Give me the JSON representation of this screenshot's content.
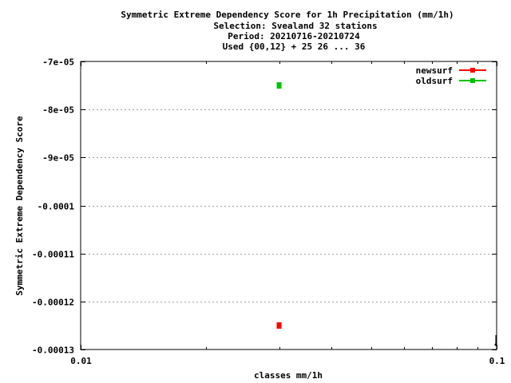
{
  "chart_data": {
    "type": "scatter",
    "title_lines": [
      "Symmetric Extreme Dependency Score  for 1h Precipitation (mm/1h)",
      "Selection: Svealand     32 stations",
      "Period: 20210716-20210724",
      "Used {00,12} + 25 26 ... 36"
    ],
    "xlabel": "classes mm/1h",
    "ylabel": "Symmetric Extreme Dependency Score",
    "xscale": "log",
    "xlim": [
      0.01,
      0.1
    ],
    "ylim": [
      -0.00013,
      -7e-05
    ],
    "x_ticks": [
      {
        "value": 0.01,
        "label": "0.01"
      },
      {
        "value": 0.1,
        "label": "0.1"
      }
    ],
    "y_ticks": [
      {
        "value": -7e-05,
        "label": "-7e-05"
      },
      {
        "value": -8e-05,
        "label": "-8e-05"
      },
      {
        "value": -9e-05,
        "label": "-9e-05"
      },
      {
        "value": -0.0001,
        "label": "-0.0001"
      },
      {
        "value": -0.00011,
        "label": "-0.00011"
      },
      {
        "value": -0.00012,
        "label": "-0.00012"
      },
      {
        "value": -0.00013,
        "label": "-0.00013"
      }
    ],
    "grid": true,
    "legend_position": "top-right",
    "series": [
      {
        "name": "newsurf",
        "color": "#ff0000",
        "points": [
          {
            "x": 0.03,
            "y": -0.000125
          }
        ]
      },
      {
        "name": "oldsurf",
        "color": "#00c000",
        "points": [
          {
            "x": 0.03,
            "y": -7.5e-05
          }
        ]
      }
    ]
  }
}
